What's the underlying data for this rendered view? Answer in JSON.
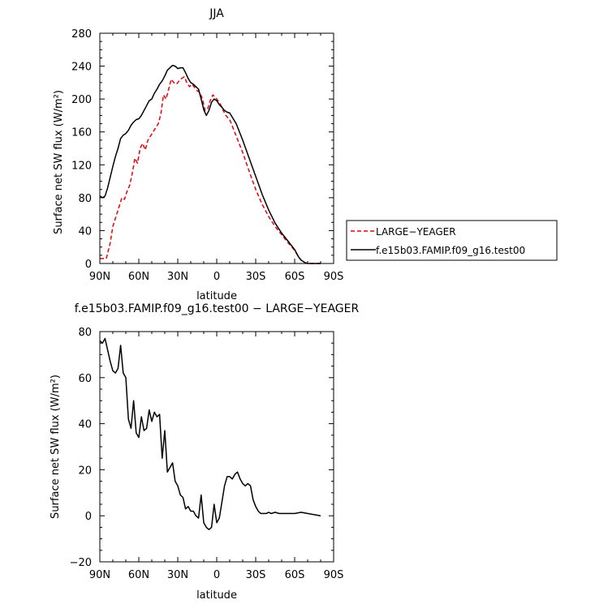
{
  "chart_data": [
    {
      "type": "line",
      "title": "JJA",
      "xlabel": "latitude",
      "ylabel": "Surface net SW flux (W/m²)",
      "xlim": [
        90,
        -90
      ],
      "ylim": [
        0,
        280
      ],
      "xticks": [
        90,
        60,
        30,
        0,
        -30,
        -60,
        -90
      ],
      "xticklabels": [
        "90N",
        "60N",
        "30N",
        "0",
        "30S",
        "60S",
        "90S"
      ],
      "yticks": [
        0,
        40,
        80,
        120,
        160,
        200,
        240,
        280
      ],
      "legend": [
        "LARGE−YEAGER",
        "f.e15b03.FAMIP.f09_g16.test00"
      ],
      "series": [
        {
          "name": "LARGE−YEAGER",
          "color": "#e8000b",
          "dash": "dashed",
          "x": [
            90,
            85,
            82,
            80,
            77,
            75,
            73,
            71,
            69,
            67,
            65,
            63,
            61,
            59,
            57,
            55,
            53,
            51,
            49,
            47,
            45,
            43,
            41,
            39,
            37,
            35,
            33,
            31,
            29,
            27,
            25,
            23,
            21,
            19,
            17,
            15,
            13,
            11,
            9,
            7,
            5,
            3,
            1,
            -1,
            -3,
            -5,
            -7,
            -10,
            -15,
            -20,
            -25,
            -30,
            -35,
            -40,
            -45,
            -50,
            -55,
            -60,
            -63,
            -65,
            -68,
            -70,
            -75,
            -80
          ],
          "y": [
            6,
            6,
            25,
            45,
            60,
            70,
            80,
            78,
            88,
            95,
            110,
            128,
            122,
            140,
            146,
            138,
            150,
            155,
            160,
            165,
            170,
            182,
            205,
            200,
            212,
            224,
            220,
            218,
            222,
            225,
            227,
            220,
            215,
            218,
            214,
            210,
            208,
            200,
            186,
            188,
            198,
            205,
            202,
            198,
            193,
            186,
            180,
            175,
            155,
            135,
            112,
            90,
            72,
            57,
            45,
            35,
            25,
            16,
            8,
            4,
            1,
            0,
            0,
            0
          ]
        },
        {
          "name": "f.e15b03.FAMIP.f09_g16.test00",
          "color": "#000000",
          "dash": "solid",
          "x": [
            90,
            88,
            86,
            84,
            82,
            80,
            78,
            76,
            74,
            72,
            70,
            68,
            66,
            64,
            62,
            60,
            58,
            56,
            54,
            52,
            50,
            48,
            46,
            44,
            42,
            40,
            38,
            36,
            34,
            32,
            30,
            28,
            26,
            24,
            22,
            20,
            18,
            16,
            14,
            12,
            10,
            8,
            6,
            4,
            2,
            0,
            -2,
            -4,
            -6,
            -8,
            -10,
            -15,
            -20,
            -25,
            -30,
            -35,
            -40,
            -45,
            -50,
            -55,
            -60,
            -63,
            -65,
            -68,
            -70,
            -75,
            -80
          ],
          "y": [
            82,
            80,
            82,
            92,
            105,
            118,
            130,
            140,
            152,
            156,
            158,
            162,
            168,
            172,
            175,
            176,
            180,
            186,
            192,
            198,
            200,
            207,
            212,
            218,
            222,
            228,
            235,
            238,
            241,
            240,
            237,
            238,
            238,
            232,
            225,
            220,
            218,
            215,
            212,
            200,
            187,
            180,
            186,
            196,
            200,
            198,
            193,
            190,
            186,
            184,
            183,
            170,
            150,
            128,
            106,
            84,
            65,
            49,
            37,
            27,
            17,
            8,
            4,
            1,
            0,
            0,
            0
          ]
        }
      ]
    },
    {
      "type": "line",
      "title": "f.e15b03.FAMIP.f09_g16.test00 − LARGE−YEAGER",
      "xlabel": "latitude",
      "ylabel": "Surface net SW flux (W/m²)",
      "xlim": [
        90,
        -90
      ],
      "ylim": [
        -20,
        80
      ],
      "xticks": [
        90,
        60,
        30,
        0,
        -30,
        -60,
        -90
      ],
      "xticklabels": [
        "90N",
        "60N",
        "30N",
        "0",
        "30S",
        "60S",
        "90S"
      ],
      "yticks": [
        -20,
        0,
        20,
        40,
        60,
        80
      ],
      "yticklabels": [
        "−20",
        "0",
        "20",
        "40",
        "60",
        "80"
      ],
      "series": [
        {
          "name": "difference",
          "color": "#000000",
          "dash": "solid",
          "x": [
            90,
            88,
            86,
            84,
            82,
            80,
            78,
            76,
            74,
            72,
            70,
            68,
            66,
            64,
            62,
            60,
            58,
            56,
            54,
            52,
            50,
            48,
            46,
            44,
            42,
            40,
            38,
            36,
            34,
            32,
            30,
            28,
            26,
            24,
            22,
            20,
            18,
            16,
            14,
            12,
            10,
            8,
            6,
            4,
            2,
            0,
            -2,
            -4,
            -6,
            -8,
            -10,
            -12,
            -14,
            -16,
            -18,
            -20,
            -22,
            -24,
            -26,
            -28,
            -30,
            -32,
            -34,
            -36,
            -38,
            -40,
            -42,
            -45,
            -48,
            -50,
            -52,
            -55,
            -60,
            -65,
            -70,
            -75,
            -80
          ],
          "y": [
            76,
            75,
            77,
            72,
            67,
            63,
            62,
            64,
            74,
            62,
            60,
            42,
            38,
            50,
            36,
            34,
            43,
            37,
            38,
            46,
            41,
            45,
            43,
            44,
            25,
            37,
            19,
            21,
            23,
            15,
            13,
            9,
            8,
            3,
            4,
            2,
            2,
            0,
            -1,
            9,
            -3,
            -5,
            -6,
            -5,
            5,
            -3,
            -1,
            6,
            13,
            17,
            17,
            16,
            18,
            19,
            16,
            14,
            13,
            14,
            13,
            7,
            4,
            2,
            1,
            1,
            1,
            1.5,
            1,
            1.5,
            1,
            1,
            1,
            1,
            1,
            1.5,
            1,
            0.5,
            0
          ]
        }
      ]
    }
  ]
}
